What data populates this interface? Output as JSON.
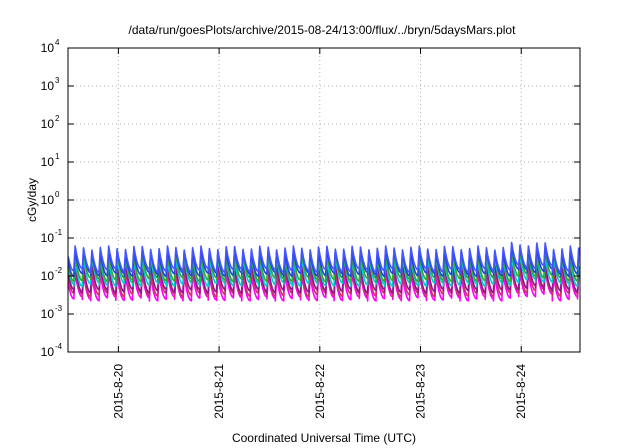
{
  "chart_data": {
    "type": "line",
    "title": "/data/run/goesPlots/archive/2015-08-24/13:00/flux/../bryn/5daysMars.plot",
    "xlabel": "Coordinated Universal Time (UTC)",
    "ylabel": "cGy/day",
    "yscale": "log",
    "ylim": [
      0.0001,
      10000
    ],
    "y_tick_labels": [
      {
        "value": 0.0001,
        "base": "10",
        "exp": "-4"
      },
      {
        "value": 0.001,
        "base": "10",
        "exp": "-3"
      },
      {
        "value": 0.01,
        "base": "10",
        "exp": "-2"
      },
      {
        "value": 0.1,
        "base": "10",
        "exp": "-1"
      },
      {
        "value": 1,
        "base": "10",
        "exp": "0"
      },
      {
        "value": 10,
        "base": "10",
        "exp": "1"
      },
      {
        "value": 100,
        "base": "10",
        "exp": "2"
      },
      {
        "value": 1000,
        "base": "10",
        "exp": "3"
      },
      {
        "value": 10000,
        "base": "10",
        "exp": "4"
      }
    ],
    "x_range": [
      "2015-08-19T12:00",
      "2015-08-24T14:00"
    ],
    "x_tick_labels": [
      "2015-8-20",
      "2015-8-21",
      "2015-8-22",
      "2015-8-23",
      "2015-8-24"
    ],
    "x_tick_dates": [
      "2015-08-20T00:00",
      "2015-08-21T00:00",
      "2015-08-22T00:00",
      "2015-08-23T00:00",
      "2015-08-24T00:00"
    ],
    "grid": true,
    "pattern": "periodic sawtooth, about 12 cycles per day; each trace rises sharply then decays",
    "series": [
      {
        "color": "#ff00ff",
        "trough": 0.0025,
        "peak": 0.011
      },
      {
        "color": "#cc3366",
        "trough": 0.0032,
        "peak": 0.015
      },
      {
        "color": "#8a1a8a",
        "trough": 0.004,
        "peak": 0.02
      },
      {
        "color": "#00cccc",
        "trough": 0.006,
        "peak": 0.03
      },
      {
        "color": "#33aa33",
        "trough": 0.008,
        "peak": 0.038
      },
      {
        "color": "#2244dd",
        "trough": 0.011,
        "peak": 0.045
      },
      {
        "color": "#4455ff",
        "trough": 0.014,
        "peak": 0.055
      }
    ]
  }
}
